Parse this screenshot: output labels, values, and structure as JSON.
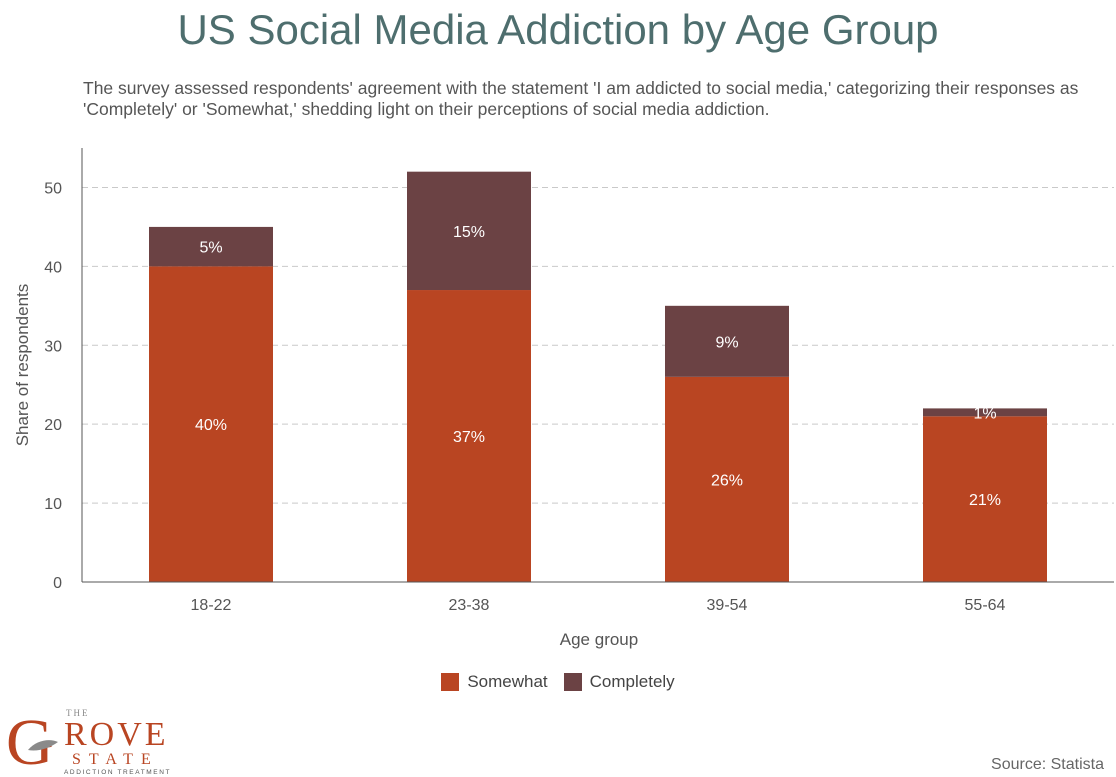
{
  "chart_data": {
    "type": "bar",
    "stacked": true,
    "title": "US Social Media Addiction by Age Group",
    "subtitle": "The survey assessed respondents' agreement with the statement 'I am addicted to social media,' categorizing their responses as 'Completely' or 'Somewhat,' shedding light on their perceptions of social media addiction.",
    "xlabel": "Age group",
    "ylabel": "Share of respondents",
    "ylim": [
      0,
      55
    ],
    "yticks": [
      0,
      10,
      20,
      30,
      40,
      50
    ],
    "grid": true,
    "legend_position": "bottom",
    "categories": [
      "18-22",
      "23-38",
      "39-54",
      "55-64"
    ],
    "series": [
      {
        "name": "Somewhat",
        "color": "#b94522",
        "values": [
          40,
          37,
          26,
          21
        ],
        "labels": [
          "40%",
          "37%",
          "26%",
          "21%"
        ]
      },
      {
        "name": "Completely",
        "color": "#6b4244",
        "values": [
          5,
          15,
          9,
          1
        ],
        "labels": [
          "5%",
          "15%",
          "9%",
          "1%"
        ]
      }
    ]
  },
  "source": "Source: Statista",
  "logo": {
    "top": "THE",
    "main_first": "G",
    "main_rest": "ROVE",
    "second": "STATE",
    "tagline": "ADDICTION TREATMENT"
  }
}
